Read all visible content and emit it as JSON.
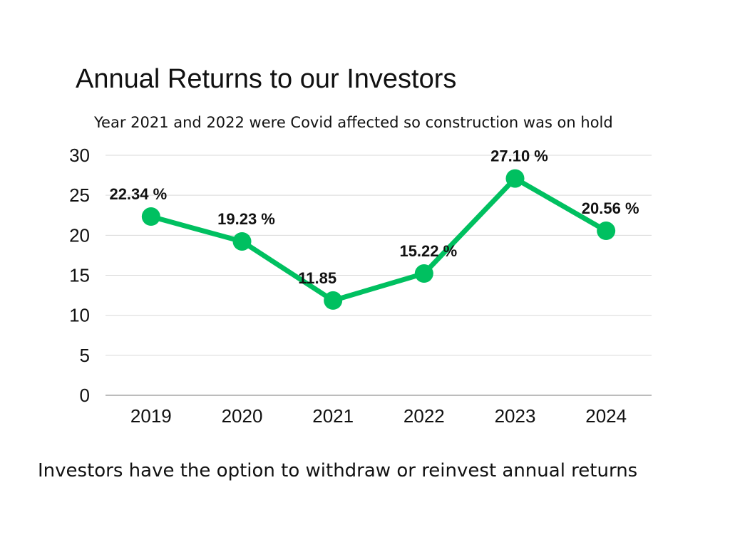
{
  "title": "Annual Returns to our Investors",
  "subtitle": "Year 2021 and 2022 were Covid  affected so construction was on hold",
  "footer": "Investors have the option to withdraw or reinvest  annual returns",
  "colors": {
    "line": "#00c060",
    "grid": "#d9d9d9",
    "axis": "#a6a6a6",
    "text": "#111111"
  },
  "chart_data": {
    "type": "line",
    "categories": [
      "2019",
      "2020",
      "2021",
      "2022",
      "2023",
      "2024"
    ],
    "values": [
      22.34,
      19.23,
      11.85,
      15.22,
      27.1,
      20.56
    ],
    "data_labels": [
      "22.34 %",
      "19.23 %",
      "11.85",
      "15.22 %",
      "27.10 %",
      "20.56 %"
    ],
    "ylim": [
      0,
      30
    ],
    "yticks": [
      0,
      5,
      10,
      15,
      20,
      25,
      30
    ],
    "grid": true,
    "legend": "none",
    "xlabel": "",
    "ylabel": ""
  }
}
